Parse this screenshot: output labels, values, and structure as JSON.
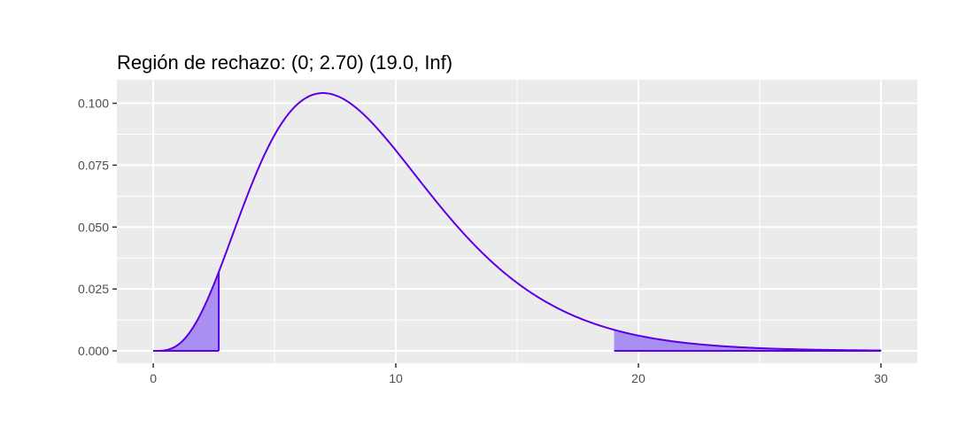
{
  "chart_data": {
    "type": "area",
    "title": "Región de rechazo:  (0; 2.70) (19.0, Inf)",
    "xlabel": "",
    "ylabel": "",
    "xlim": [
      -1.5,
      31.5
    ],
    "ylim": [
      -0.005,
      0.1095
    ],
    "x_ticks": [
      0,
      10,
      20,
      30
    ],
    "x_tick_labels": [
      "0",
      "10",
      "20",
      "30"
    ],
    "y_ticks": [
      0.0,
      0.025,
      0.05,
      0.075,
      0.1
    ],
    "y_tick_labels": [
      "0.000",
      "0.025",
      "0.050",
      "0.075",
      "0.100"
    ],
    "grid": true,
    "series": [
      {
        "curve": "chi-squared density, df = 9",
        "x": [
          0,
          1,
          2,
          2.7,
          3,
          4,
          5,
          6,
          7,
          8,
          9,
          10,
          11,
          12,
          13,
          14,
          15,
          16,
          17,
          18,
          19,
          20,
          21,
          22,
          23,
          24,
          25,
          26,
          27,
          28,
          29,
          30
        ],
        "y": [
          0,
          0.0012,
          0.0125,
          0.0315,
          0.0341,
          0.0599,
          0.0829,
          0.0979,
          0.104,
          0.1021,
          0.0947,
          0.0835,
          0.071,
          0.0586,
          0.0473,
          0.0373,
          0.0289,
          0.022,
          0.0165,
          0.0122,
          0.0089,
          0.0065,
          0.0047,
          0.0033,
          0.0023,
          0.0016,
          0.0011,
          0.0008,
          0.0005,
          0.0004,
          0.0003,
          0.0002
        ]
      }
    ],
    "shaded_regions": [
      {
        "from": 0,
        "to": 2.7
      },
      {
        "from": 19.0,
        "to": 30
      }
    ],
    "colors": {
      "line": "#5b00e6",
      "fill": "#a98ff2",
      "panel": "#ebebeb",
      "grid": "#ffffff"
    }
  }
}
